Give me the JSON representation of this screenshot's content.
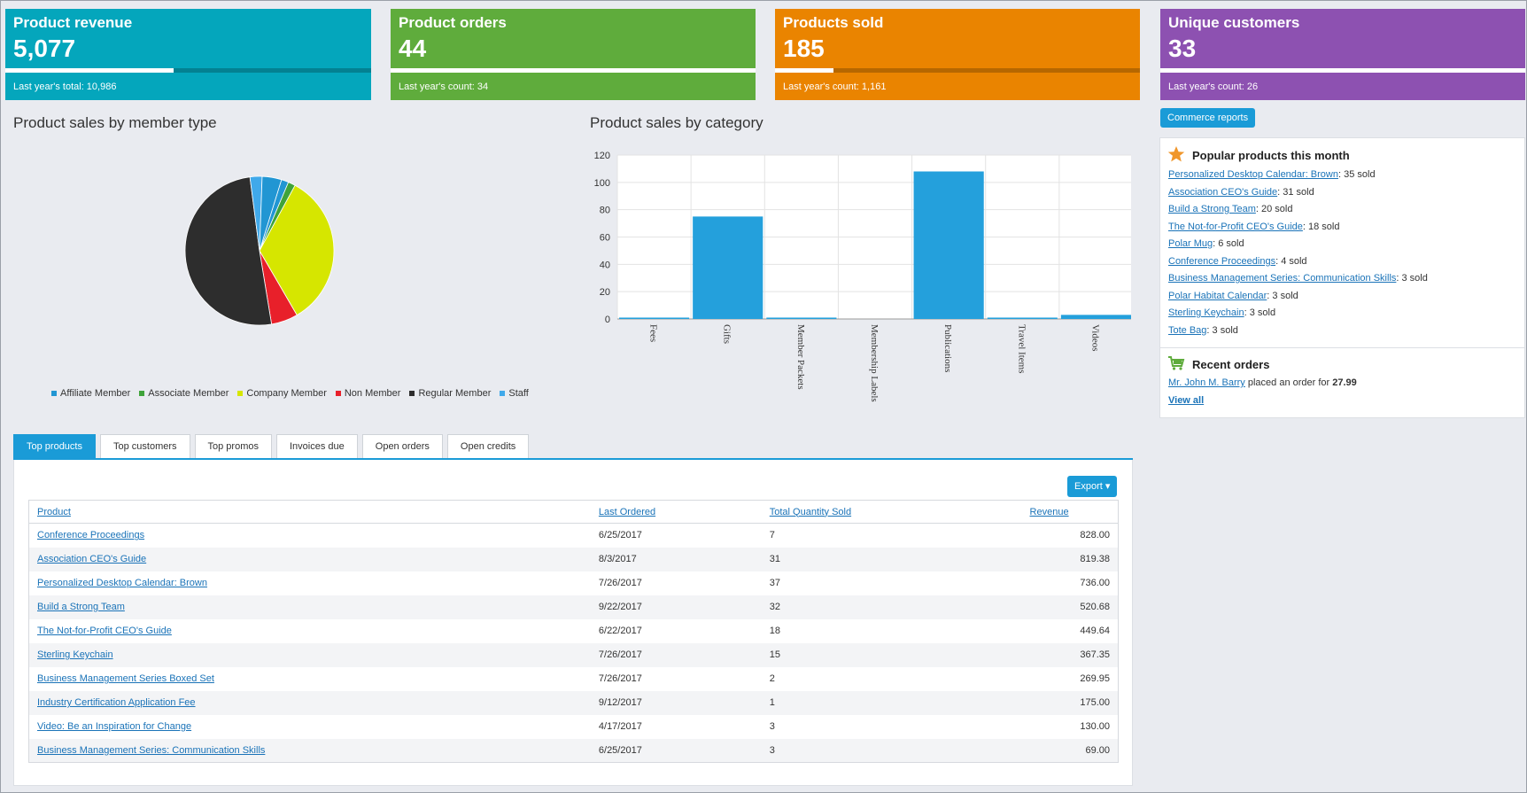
{
  "kpis": [
    {
      "label": "Product revenue",
      "value": "5,077",
      "last": "Last year's total: 10,986",
      "color": "#04a6bc",
      "progress": 0.46
    },
    {
      "label": "Product orders",
      "value": "44",
      "last": "Last year's count: 34",
      "color": "#5fac3c",
      "progress": 1.0
    },
    {
      "label": "Products sold",
      "value": "185",
      "last": "Last year's count: 1,161",
      "color": "#ea8400",
      "progress": 0.16
    },
    {
      "label": "Unique customers",
      "value": "33",
      "last": "Last year's count: 26",
      "color": "#8d51b1",
      "progress": 1.0
    }
  ],
  "sections": {
    "member_type_title": "Product sales by member type",
    "category_title": "Product sales by category"
  },
  "commerce_reports_label": "Commerce reports",
  "popular": {
    "title": "Popular products this month",
    "items": [
      {
        "name": "Personalized Desktop Calendar: Brown",
        "sold": ": 35 sold"
      },
      {
        "name": "Association CEO's Guide",
        "sold": ": 31 sold"
      },
      {
        "name": "Build a Strong Team",
        "sold": ": 20 sold"
      },
      {
        "name": "The Not-for-Profit CEO's Guide",
        "sold": ": 18 sold"
      },
      {
        "name": "Polar Mug",
        "sold": ": 6 sold"
      },
      {
        "name": "Conference Proceedings",
        "sold": ": 4 sold"
      },
      {
        "name": "Business Management Series: Communication Skills",
        "sold": ": 3 sold"
      },
      {
        "name": "Polar Habitat Calendar",
        "sold": ": 3 sold"
      },
      {
        "name": "Sterling Keychain",
        "sold": ": 3 sold"
      },
      {
        "name": "Tote Bag",
        "sold": ": 3 sold"
      }
    ]
  },
  "recent": {
    "title": "Recent orders",
    "customer": "Mr. John M. Barry",
    "text": " placed an order for ",
    "amount": "27.99",
    "view_all": "View all"
  },
  "tabs": [
    "Top products",
    "Top customers",
    "Top promos",
    "Invoices due",
    "Open orders",
    "Open credits"
  ],
  "export_label": "Export ▾",
  "table": {
    "headers": [
      "Product",
      "Last Ordered",
      "Total Quantity Sold",
      "Revenue"
    ],
    "rows": [
      [
        "Conference Proceedings",
        "6/25/2017",
        "7",
        "828.00"
      ],
      [
        "Association CEO's Guide",
        "8/3/2017",
        "31",
        "819.38"
      ],
      [
        "Personalized Desktop Calendar: Brown",
        "7/26/2017",
        "37",
        "736.00"
      ],
      [
        "Build a Strong Team",
        "9/22/2017",
        "32",
        "520.68"
      ],
      [
        "The Not-for-Profit CEO's Guide",
        "6/22/2017",
        "18",
        "449.64"
      ],
      [
        "Sterling Keychain",
        "7/26/2017",
        "15",
        "367.35"
      ],
      [
        "Business Management Series Boxed Set",
        "7/26/2017",
        "2",
        "269.95"
      ],
      [
        "Industry Certification Application Fee",
        "9/12/2017",
        "1",
        "175.00"
      ],
      [
        "Video: Be an Inspiration for Change",
        "4/17/2017",
        "3",
        "130.00"
      ],
      [
        "Business Management Series: Communication Skills",
        "6/25/2017",
        "3",
        "69.00"
      ]
    ]
  },
  "chart_data": [
    {
      "type": "pie",
      "title": "Product sales by member type",
      "legend_position": "bottom",
      "slices": [
        {
          "name": "Affiliate Member",
          "value": 1.5,
          "color": "#2196d3"
        },
        {
          "name": "Associate Member",
          "value": 1.5,
          "color": "#3fa33a"
        },
        {
          "name": "Company Member",
          "value": 32,
          "color": "#d6e600"
        },
        {
          "name": "Non Member",
          "value": 5.5,
          "color": "#e8202a"
        },
        {
          "name": "Regular Member",
          "value": 48,
          "color": "#2d2d2d"
        },
        {
          "name": "Staff",
          "value": 2.5,
          "color": "#40a9ea"
        },
        {
          "name": "",
          "value": 4,
          "color": "#2196d3"
        }
      ]
    },
    {
      "type": "bar",
      "title": "Product sales by category",
      "categories": [
        "Fees",
        "Gifts",
        "Member Packets",
        "Membership Labels",
        "Publications",
        "Travel Items",
        "Videos"
      ],
      "values": [
        1,
        75,
        1,
        0,
        108,
        1,
        3
      ],
      "ylim": [
        0,
        120
      ],
      "yticks": [
        0,
        20,
        40,
        60,
        80,
        100,
        120
      ],
      "grid": true,
      "color": "#24a0dc"
    }
  ]
}
